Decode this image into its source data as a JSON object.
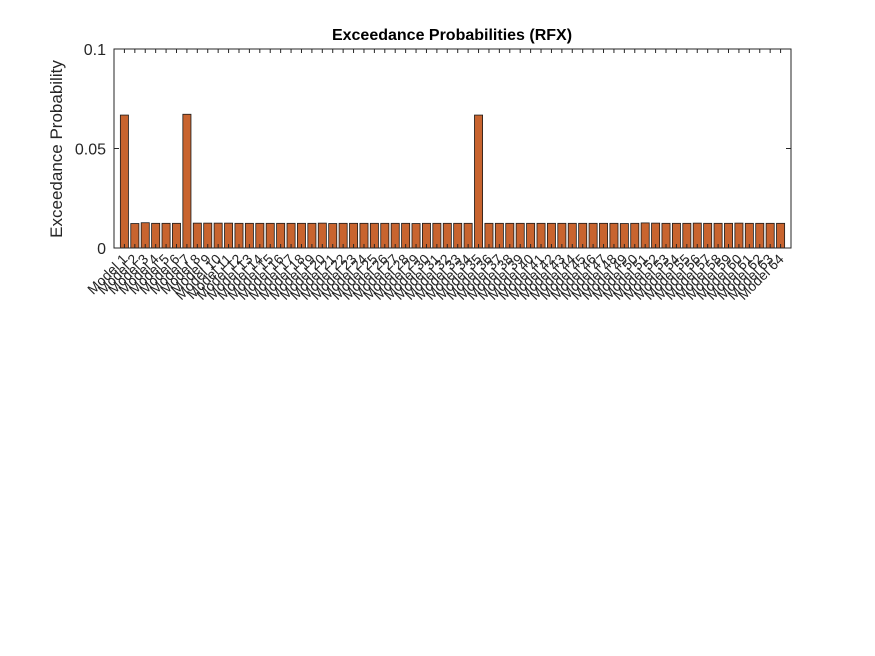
{
  "chart_data": {
    "type": "bar",
    "title": "Exceedance Probabilities (RFX)",
    "xlabel": "",
    "ylabel": "Exceedance Probability",
    "ylim": [
      0,
      0.1
    ],
    "yticks": [
      0,
      0.05,
      0.1
    ],
    "ytick_labels": [
      "0",
      "0.05",
      "0.1"
    ],
    "grid": false,
    "bar_color": "#c8642f",
    "categories": [
      "Model 1",
      "Model 2",
      "Model 3",
      "Model 4",
      "Model 5",
      "Model 6",
      "Model 7",
      "Model 8",
      "Model 9",
      "Model 10",
      "Model 11",
      "Model 12",
      "Model 13",
      "Model 14",
      "Model 15",
      "Model 16",
      "Model 17",
      "Model 18",
      "Model 19",
      "Model 20",
      "Model 21",
      "Model 22",
      "Model 23",
      "Model 24",
      "Model 25",
      "Model 26",
      "Model 27",
      "Model 28",
      "Model 29",
      "Model 30",
      "Model 31",
      "Model 32",
      "Model 33",
      "Model 34",
      "Model 35",
      "Model 36",
      "Model 37",
      "Model 38",
      "Model 39",
      "Model 40",
      "Model 41",
      "Model 42",
      "Model 43",
      "Model 44",
      "Model 45",
      "Model 46",
      "Model 47",
      "Model 48",
      "Model 49",
      "Model 50",
      "Model 51",
      "Model 52",
      "Model 53",
      "Model 54",
      "Model 55",
      "Model 56",
      "Model 57",
      "Model 58",
      "Model 59",
      "Model 60",
      "Model 61",
      "Model 62",
      "Model 63",
      "Model 64"
    ],
    "values": [
      0.0668,
      0.0123,
      0.0127,
      0.0124,
      0.0124,
      0.0124,
      0.0672,
      0.0125,
      0.0125,
      0.0125,
      0.0125,
      0.0124,
      0.0124,
      0.0124,
      0.0124,
      0.0124,
      0.0124,
      0.0124,
      0.0124,
      0.0125,
      0.0123,
      0.0124,
      0.0124,
      0.0124,
      0.0124,
      0.0124,
      0.0124,
      0.0124,
      0.0123,
      0.0124,
      0.0124,
      0.0124,
      0.0124,
      0.0124,
      0.0668,
      0.0124,
      0.0124,
      0.0124,
      0.0124,
      0.0124,
      0.0124,
      0.0124,
      0.0124,
      0.0124,
      0.0124,
      0.0124,
      0.0124,
      0.0124,
      0.0123,
      0.0124,
      0.0126,
      0.0125,
      0.0124,
      0.0124,
      0.0124,
      0.0125,
      0.0124,
      0.0124,
      0.0124,
      0.0125,
      0.0124,
      0.0124,
      0.0124,
      0.0124
    ]
  }
}
